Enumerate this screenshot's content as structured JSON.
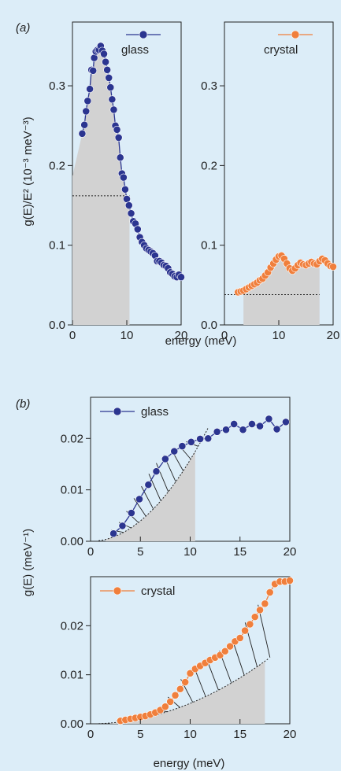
{
  "panel_labels": {
    "a": "(a)",
    "b": "(b)"
  },
  "colors": {
    "background": "#dcedf8",
    "glass": "#2b3590",
    "crystal": "#f07f3c",
    "shade": "#d2d2d2"
  },
  "axis_labels": {
    "a_y": "g(E)/E² (10⁻³ meV⁻³)",
    "a_x": "energy (meV)",
    "b_y": "g(E) (meV⁻¹)",
    "b_x": "energy (meV)"
  },
  "chart_data": [
    {
      "id": "a-glass",
      "type": "line",
      "panel": "(a)",
      "xlim": [
        0,
        20
      ],
      "ylim": [
        0,
        0.38
      ],
      "xticks": [
        "0",
        "10",
        "20"
      ],
      "yticks": [
        "0.0",
        "0.1",
        "0.2",
        "0.3"
      ],
      "legend": "glass",
      "legend_position": "top-right",
      "series": [
        {
          "name": "glass",
          "color": "#2b3590",
          "x": [
            1.8,
            2.2,
            2.5,
            2.8,
            3.2,
            3.5,
            3.8,
            4.0,
            4.3,
            4.6,
            4.9,
            5.2,
            5.5,
            5.8,
            6.1,
            6.4,
            6.7,
            7.0,
            7.3,
            7.6,
            7.9,
            8.2,
            8.5,
            8.8,
            9.1,
            9.4,
            9.7,
            10.0,
            10.4,
            10.8,
            11.2,
            11.6,
            12.0,
            12.4,
            12.8,
            13.2,
            13.6,
            14.0,
            14.4,
            14.8,
            15.2,
            15.6,
            16.0,
            16.4,
            16.8,
            17.2,
            17.6,
            18.0,
            18.4,
            18.8,
            19.2,
            19.6,
            20.0
          ],
          "y": [
            0.24,
            0.251,
            0.268,
            0.281,
            0.296,
            0.32,
            0.319,
            0.335,
            0.343,
            0.345,
            0.345,
            0.35,
            0.344,
            0.34,
            0.33,
            0.32,
            0.31,
            0.298,
            0.283,
            0.27,
            0.25,
            0.245,
            0.235,
            0.21,
            0.19,
            0.185,
            0.17,
            0.158,
            0.15,
            0.14,
            0.13,
            0.127,
            0.12,
            0.11,
            0.104,
            0.1,
            0.096,
            0.094,
            0.092,
            0.09,
            0.087,
            0.08,
            0.08,
            0.078,
            0.075,
            0.074,
            0.071,
            0.066,
            0.064,
            0.061,
            0.06,
            0.063,
            0.06
          ]
        }
      ],
      "shaded_region": {
        "x_from": 0,
        "x_to": 10.5,
        "reference_level": 0.162
      }
    },
    {
      "id": "a-crystal",
      "type": "line",
      "panel": "(a)",
      "xlim": [
        0,
        20
      ],
      "ylim": [
        0,
        0.38
      ],
      "xticks": [
        "0",
        "10",
        "20"
      ],
      "yticks": [
        "0.0",
        "0.1",
        "0.2",
        "0.3"
      ],
      "legend": "crystal",
      "legend_position": "top-right",
      "series": [
        {
          "name": "crystal",
          "color": "#f07f3c",
          "x": [
            2.5,
            3.0,
            3.5,
            4.0,
            4.5,
            5.0,
            5.5,
            6.0,
            6.5,
            7.0,
            7.5,
            8.0,
            8.5,
            9.0,
            9.5,
            10.0,
            10.5,
            11.0,
            11.5,
            12.0,
            12.5,
            13.0,
            13.5,
            14.0,
            14.5,
            15.0,
            15.5,
            16.0,
            16.5,
            17.0,
            17.5,
            18.0,
            18.5,
            19.0,
            19.5,
            20.0
          ],
          "y": [
            0.041,
            0.042,
            0.043,
            0.045,
            0.047,
            0.049,
            0.051,
            0.053,
            0.056,
            0.058,
            0.062,
            0.066,
            0.072,
            0.077,
            0.082,
            0.086,
            0.087,
            0.083,
            0.077,
            0.071,
            0.068,
            0.071,
            0.075,
            0.078,
            0.076,
            0.075,
            0.077,
            0.079,
            0.077,
            0.076,
            0.08,
            0.083,
            0.081,
            0.077,
            0.074,
            0.073
          ]
        }
      ],
      "shaded_region": {
        "x_from": 3.5,
        "x_to": 17.5,
        "reference_level": 0.038
      }
    },
    {
      "id": "b-glass",
      "type": "line",
      "panel": "(b)",
      "xlim": [
        0,
        20
      ],
      "ylim": [
        0,
        0.028
      ],
      "xticks": [
        "0",
        "5",
        "10",
        "15",
        "20"
      ],
      "yticks": [
        "0.00",
        "0.01",
        "0.02"
      ],
      "legend": "glass",
      "legend_position": "top-left",
      "series": [
        {
          "name": "glass",
          "color": "#2b3590",
          "x": [
            2.3,
            3.2,
            4.1,
            4.9,
            5.8,
            6.6,
            7.5,
            8.4,
            9.2,
            10.1,
            11.0,
            11.8,
            12.7,
            13.6,
            14.4,
            15.3,
            16.2,
            17.0,
            17.9,
            18.7,
            19.6
          ],
          "y": [
            0.0015,
            0.003,
            0.0055,
            0.0082,
            0.011,
            0.0136,
            0.016,
            0.0175,
            0.0185,
            0.0193,
            0.0199,
            0.02,
            0.0213,
            0.0217,
            0.0228,
            0.0217,
            0.0228,
            0.0224,
            0.0238,
            0.0218,
            0.0232
          ]
        }
      ],
      "hatched_region": {
        "x_from": 1.5,
        "x_to": 10.5
      },
      "debye_curve": {
        "x_to": 12.0,
        "y_at_end": 0.0228
      }
    },
    {
      "id": "b-crystal",
      "type": "line",
      "panel": "(b)",
      "xlim": [
        0,
        20
      ],
      "ylim": [
        0,
        0.03
      ],
      "xticks": [
        "0",
        "5",
        "10",
        "15",
        "20"
      ],
      "yticks": [
        "0.00",
        "0.01",
        "0.02"
      ],
      "legend": "crystal",
      "legend_position": "top-left",
      "series": [
        {
          "name": "crystal",
          "color": "#f07f3c",
          "x": [
            3.0,
            3.5,
            4.0,
            4.5,
            5.0,
            5.5,
            6.0,
            6.5,
            7.0,
            7.5,
            8.0,
            8.5,
            9.0,
            9.5,
            10.0,
            10.5,
            11.0,
            11.5,
            12.0,
            12.5,
            13.0,
            13.5,
            14.0,
            14.5,
            15.0,
            15.5,
            16.0,
            16.5,
            17.0,
            17.5,
            18.0,
            18.5,
            19.0,
            19.5,
            20.0
          ],
          "y": [
            0.0006,
            0.0008,
            0.001,
            0.0012,
            0.0014,
            0.0016,
            0.0019,
            0.0023,
            0.0028,
            0.0035,
            0.0045,
            0.0058,
            0.0071,
            0.0085,
            0.0103,
            0.0112,
            0.0118,
            0.0124,
            0.013,
            0.0135,
            0.014,
            0.0148,
            0.0158,
            0.0168,
            0.0175,
            0.019,
            0.0203,
            0.0218,
            0.0232,
            0.0245,
            0.0268,
            0.0285,
            0.029,
            0.029,
            0.0292
          ]
        }
      ],
      "hatched_region": {
        "x_from": 2.0,
        "x_to": 17.5
      },
      "debye_curve": {
        "x_to": 18.0,
        "y_at_end": 0.0135
      }
    }
  ]
}
